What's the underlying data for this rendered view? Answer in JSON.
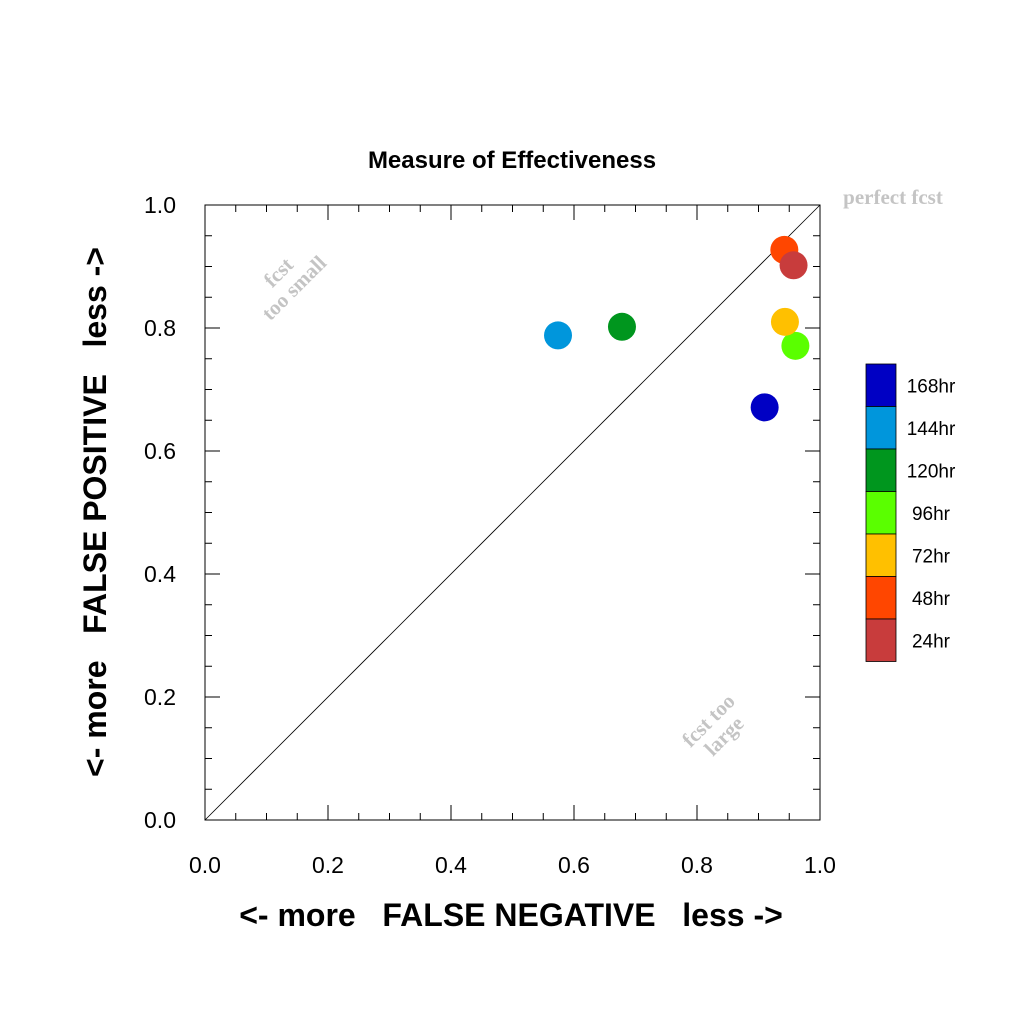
{
  "chart_data": {
    "type": "scatter",
    "title": "Measure of Effectiveness",
    "xlabel": "<- more   FALSE NEGATIVE   less ->",
    "ylabel": "<- more   FALSE POSITIVE   less ->",
    "xlim": [
      0.0,
      1.0
    ],
    "ylim": [
      0.0,
      1.0
    ],
    "xticks": [
      "0.0",
      "0.2",
      "0.4",
      "0.6",
      "0.8",
      "1.0"
    ],
    "yticks": [
      "0.0",
      "0.2",
      "0.4",
      "0.6",
      "0.8",
      "1.0"
    ],
    "grid": false,
    "diagonal_line": true,
    "annotations": {
      "perfect": "perfect fcst",
      "too_small_line1": "fcst",
      "too_small_line2": "too small",
      "too_large_line1": "fcst too",
      "too_large_line2": "large"
    },
    "legend_position": "right",
    "series": [
      {
        "name": "168hr",
        "color": "#0000c4",
        "x": 0.91,
        "y": 0.671
      },
      {
        "name": "144hr",
        "color": "#0096dc",
        "x": 0.574,
        "y": 0.788
      },
      {
        "name": "120hr",
        "color": "#00961e",
        "x": 0.678,
        "y": 0.802
      },
      {
        "name": "96hr",
        "color": "#5aff00",
        "x": 0.96,
        "y": 0.771
      },
      {
        "name": "72hr",
        "color": "#ffc000",
        "x": 0.943,
        "y": 0.81
      },
      {
        "name": "48hr",
        "color": "#ff4600",
        "x": 0.942,
        "y": 0.927
      },
      {
        "name": "24hr",
        "color": "#c83c3c",
        "x": 0.957,
        "y": 0.902
      }
    ],
    "legend_order": [
      "168hr",
      "144hr",
      "120hr",
      "96hr",
      "72hr",
      "48hr",
      "24hr"
    ]
  }
}
